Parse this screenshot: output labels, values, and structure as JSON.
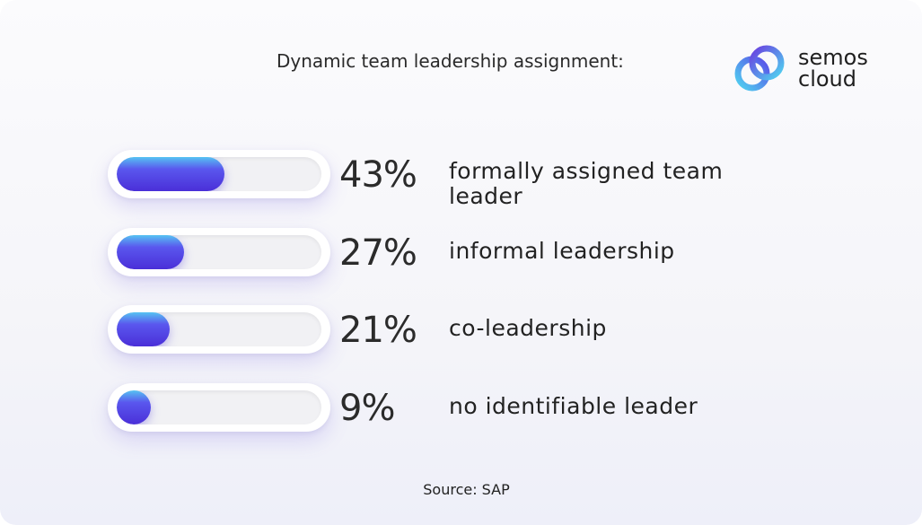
{
  "header": {
    "title": "Dynamic team leadership assignment:",
    "brand_line1": "semos",
    "brand_line2": "cloud",
    "logo_icon": "semos-cloud-logo-icon",
    "accent_colors": [
      "#56c3f2",
      "#5a57ee",
      "#4a2fd8"
    ]
  },
  "chart_data": {
    "type": "bar",
    "orientation": "horizontal",
    "title": "Dynamic team leadership assignment:",
    "categories": [
      "formally assigned team leader",
      "informal leadership",
      "co-leadership",
      "no identifiable leader"
    ],
    "values": [
      43,
      27,
      21,
      9
    ],
    "value_labels": [
      "43%",
      "27%",
      "21%",
      "9%"
    ],
    "unit": "%",
    "xlim": [
      0,
      100
    ],
    "grid": false,
    "legend": "none",
    "bar_color": "#5a57ee"
  },
  "footer": {
    "source": "Source: SAP"
  }
}
